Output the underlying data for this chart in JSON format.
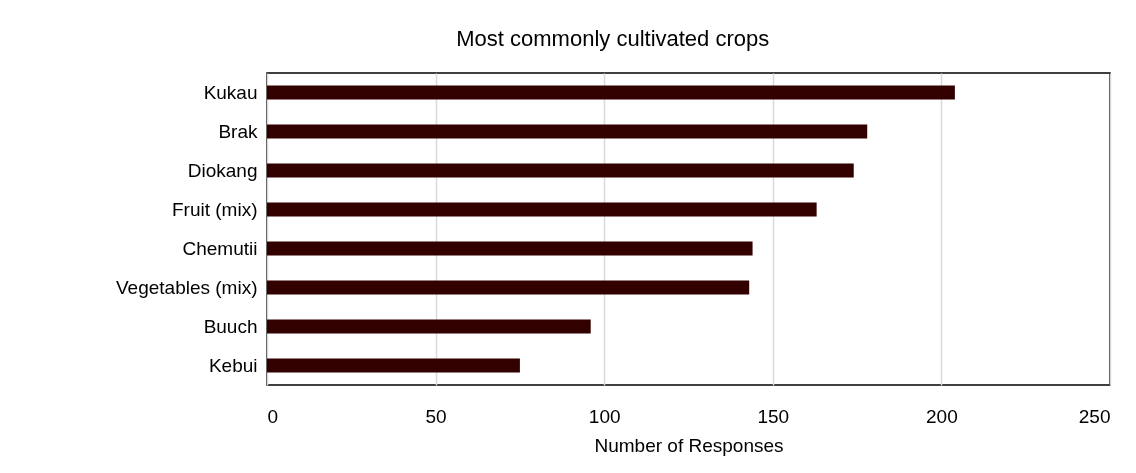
{
  "chart_data": {
    "type": "bar",
    "orientation": "horizontal",
    "title": "Most commonly cultivated crops",
    "xlabel": "Number of Responses",
    "categories": [
      "Kukau",
      "Brak",
      "Diokang",
      "Fruit (mix)",
      "Chemutii",
      "Vegetables (mix)",
      "Buuch",
      "Kebui"
    ],
    "values": [
      204,
      178,
      174,
      163,
      144,
      143,
      96,
      75
    ],
    "color": "#330000",
    "xlim": [
      0,
      250
    ],
    "xticks": [
      0,
      50,
      100,
      150,
      200,
      250
    ],
    "grid": "x"
  }
}
